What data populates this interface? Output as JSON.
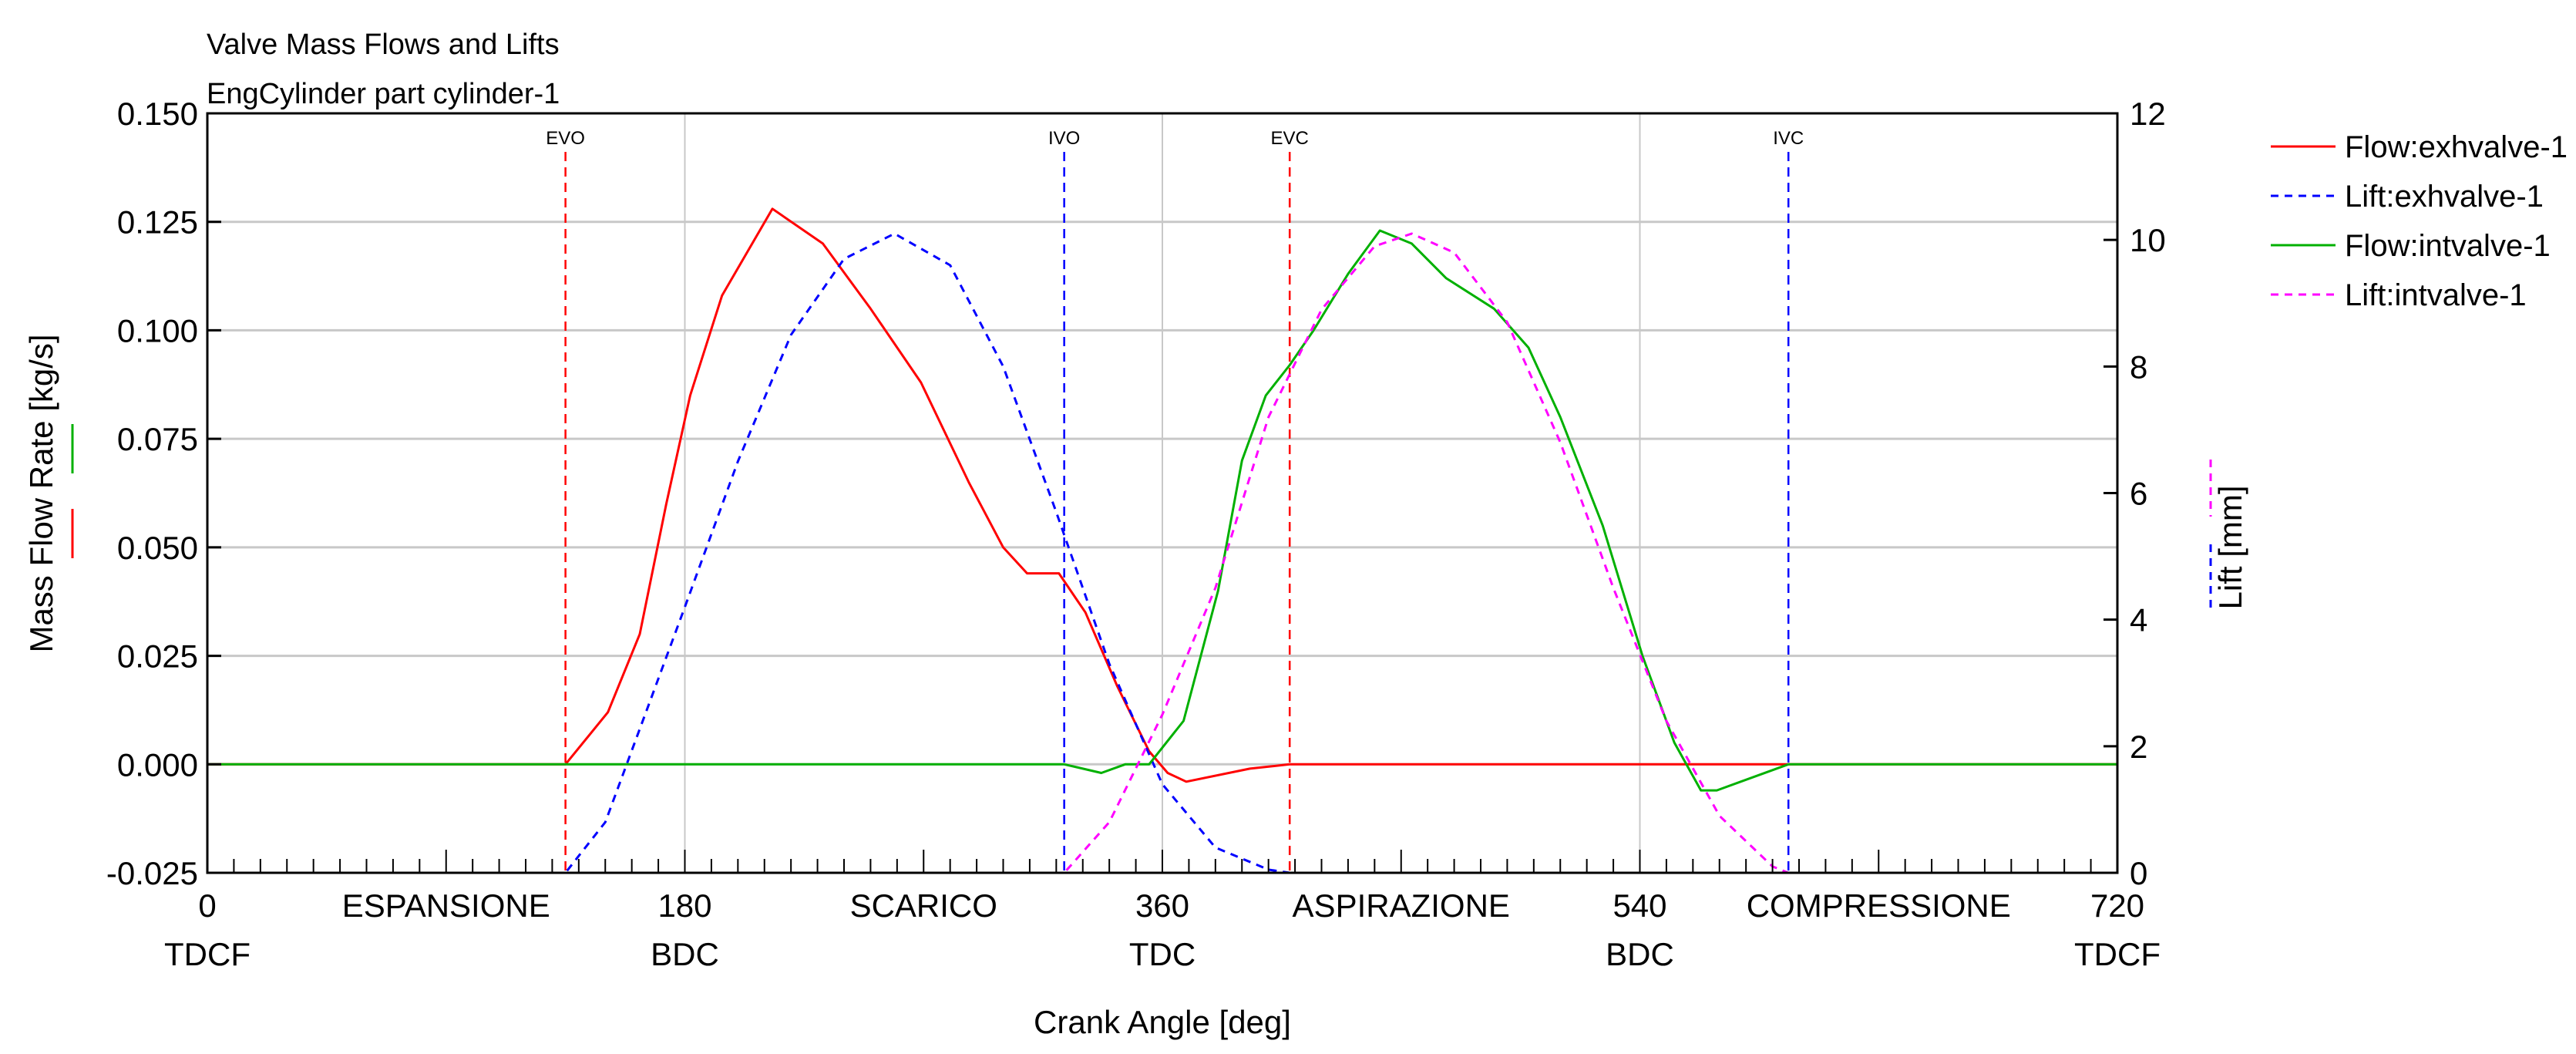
{
  "chart_data": {
    "type": "line",
    "title": "Valve Mass Flows and Lifts",
    "subtitle": "EngCylinder part cylinder-1",
    "xlabel": "Crank Angle [deg]",
    "ylabel": "Mass Flow Rate [kg/s]",
    "y2label": "Lift [mm]",
    "xlim": [
      0,
      720
    ],
    "ylim": [
      -0.025,
      0.15
    ],
    "y2lim": [
      0,
      12
    ],
    "grid": true,
    "legend_position": "right",
    "x_ticks": [
      {
        "value": 0,
        "label": "0",
        "sub": "TDCF"
      },
      {
        "value": 180,
        "label": "180",
        "sub": "BDC"
      },
      {
        "value": 360,
        "label": "360",
        "sub": "TDC"
      },
      {
        "value": 540,
        "label": "540",
        "sub": "BDC"
      },
      {
        "value": 720,
        "label": "720",
        "sub": "TDCF"
      }
    ],
    "phase_labels": [
      {
        "value": 90,
        "label": "ESPANSIONE"
      },
      {
        "value": 270,
        "label": "SCARICO"
      },
      {
        "value": 450,
        "label": "ASPIRAZIONE"
      },
      {
        "value": 630,
        "label": "COMPRESSIONE"
      }
    ],
    "y_ticks": [
      "0.150",
      "0.125",
      "0.100",
      "0.075",
      "0.050",
      "0.025",
      "0.000",
      "-0.025"
    ],
    "y_tick_values": [
      0.15,
      0.125,
      0.1,
      0.075,
      0.05,
      0.025,
      0,
      -0.025
    ],
    "y2_ticks": [
      "12",
      "10",
      "8",
      "6",
      "4",
      "2",
      "0"
    ],
    "y2_tick_values": [
      12,
      10,
      8,
      6,
      4,
      2,
      0
    ],
    "event_markers": [
      {
        "label": "EVO",
        "value": 135,
        "color": "#ff0000"
      },
      {
        "label": "IVO",
        "value": 323,
        "color": "#0000ff"
      },
      {
        "label": "EVC",
        "value": 408,
        "color": "#ff0000"
      },
      {
        "label": "IVC",
        "value": 596,
        "color": "#0000ff"
      }
    ],
    "series": [
      {
        "name": "Flow:exhvalve-1",
        "axis": "left",
        "color": "#ff0000",
        "dash": false,
        "x": [
          0,
          135,
          151,
          163,
          173,
          182,
          194,
          213,
          232,
          250,
          269,
          287,
          300,
          309,
          321,
          331,
          343,
          355,
          362,
          369,
          393,
          408,
          720
        ],
        "y": [
          0,
          0,
          0.012,
          0.03,
          0.06,
          0.085,
          0.108,
          0.128,
          0.12,
          0.105,
          0.088,
          0.065,
          0.05,
          0.044,
          0.044,
          0.035,
          0.018,
          0.003,
          -0.002,
          -0.004,
          -0.001,
          0,
          0
        ]
      },
      {
        "name": "Lift:exhvalve-1",
        "axis": "right",
        "color": "#0000ff",
        "dash": true,
        "x": [
          0,
          135,
          150,
          165,
          180,
          200,
          220,
          240,
          259,
          280,
          300,
          320,
          340,
          360,
          380,
          400,
          408,
          720
        ],
        "y": [
          0,
          0,
          0.8,
          2.5,
          4.2,
          6.5,
          8.5,
          9.7,
          10.1,
          9.6,
          8.0,
          5.7,
          3.3,
          1.4,
          0.4,
          0.05,
          0,
          0
        ]
      },
      {
        "name": "Flow:intvalve-1",
        "axis": "left",
        "color": "#00b000",
        "dash": false,
        "x": [
          0,
          323,
          337,
          346,
          355,
          368,
          381,
          390,
          399,
          408,
          417,
          430,
          442,
          454,
          467,
          485,
          498,
          510,
          526,
          541,
          553,
          563,
          569,
          596,
          720
        ],
        "y": [
          0,
          0,
          -0.002,
          0,
          0,
          0.01,
          0.04,
          0.07,
          0.085,
          0.092,
          0.1,
          0.113,
          0.123,
          0.12,
          0.112,
          0.105,
          0.096,
          0.08,
          0.055,
          0.025,
          0.005,
          -0.006,
          -0.006,
          0,
          0
        ]
      },
      {
        "name": "Lift:intvalve-1",
        "axis": "right",
        "color": "#ff00ff",
        "dash": true,
        "x": [
          0,
          323,
          340,
          360,
          380,
          400,
          420,
          440,
          454,
          470,
          490,
          510,
          530,
          550,
          570,
          590,
          596,
          720
        ],
        "y": [
          0,
          0,
          0.8,
          2.5,
          4.5,
          7.2,
          8.9,
          9.9,
          10.1,
          9.8,
          8.7,
          6.8,
          4.5,
          2.4,
          0.9,
          0.1,
          0,
          0
        ]
      }
    ]
  }
}
